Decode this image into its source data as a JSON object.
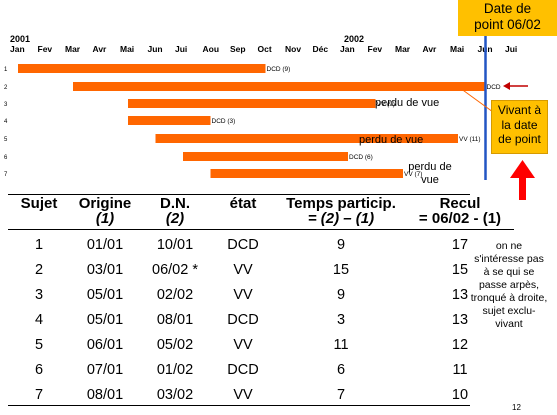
{
  "timeline": {
    "year_start": "2001",
    "year_end": "2002",
    "months": [
      "Jan",
      "Fev",
      "Mar",
      "Avr",
      "Mai",
      "Jun",
      "Jui",
      "Aou",
      "Sep",
      "Oct",
      "Nov",
      "Déc",
      "Jan",
      "Fev",
      "Mar",
      "Avr",
      "Mai",
      "Jun",
      "Jui"
    ],
    "subjects": [
      {
        "id": "1",
        "start_month": 1,
        "end_month": 10,
        "end_label": "DCD (9)"
      },
      {
        "id": "2",
        "start_month": 3,
        "end_month": 18,
        "end_label": "DCD"
      },
      {
        "id": "3",
        "start_month": 5,
        "end_month": 14,
        "end_label": "VV (9)"
      },
      {
        "id": "4",
        "start_month": 5,
        "end_month": 8,
        "end_label": "DCD (3)"
      },
      {
        "id": "5",
        "start_month": 6,
        "end_month": 17,
        "end_label": "VV (11)"
      },
      {
        "id": "6",
        "start_month": 7,
        "end_month": 13,
        "end_label": "DCD (6)"
      },
      {
        "id": "7",
        "start_month": 8,
        "end_month": 15,
        "end_label": "VV (7)"
      }
    ],
    "point_date_month": 18,
    "lost_label_1": "perdu de vue",
    "lost_label_2": "perdu de vue",
    "lost_label_3a": "perdu de",
    "lost_label_3b": "vue",
    "bar_color": "#ff6600",
    "date_line_color": "#2255c4"
  },
  "callouts": {
    "date_point_1": "Date de",
    "date_point_2": "point 06/02",
    "vivant_1": "Vivant à",
    "vivant_2": "la date",
    "vivant_3": "de point",
    "note_lines": [
      "on ne",
      "s'intéresse pas",
      "à se qui se",
      "passe arpès,",
      "tronqué à droite,",
      "sujet exclu-",
      "vivant"
    ]
  },
  "table": {
    "headers": [
      {
        "l1": "Sujet",
        "l2": ""
      },
      {
        "l1": "Origine",
        "l2": "(1)"
      },
      {
        "l1": "D.N.",
        "l2": "(2)"
      },
      {
        "l1": "état",
        "l2": ""
      },
      {
        "l1": "Temps particip.",
        "l2": "= (2) – (1)"
      },
      {
        "l1": "Recul",
        "l2": "= 06/02 - (1)"
      }
    ],
    "rows": [
      [
        "1",
        "01/01",
        "10/01",
        "DCD",
        "9",
        "17"
      ],
      [
        "2",
        "03/01",
        "06/02 *",
        "VV",
        "15",
        "15"
      ],
      [
        "3",
        "05/01",
        "02/02",
        "VV",
        "9",
        "13"
      ],
      [
        "4",
        "05/01",
        "08/01",
        "DCD",
        "3",
        "13"
      ],
      [
        "5",
        "06/01",
        "05/02",
        "VV",
        "11",
        "12"
      ],
      [
        "6",
        "07/01",
        "01/02",
        "DCD",
        "6",
        "11"
      ],
      [
        "7",
        "08/01",
        "03/02",
        "VV",
        "7",
        "10"
      ]
    ]
  },
  "page_number": "12"
}
